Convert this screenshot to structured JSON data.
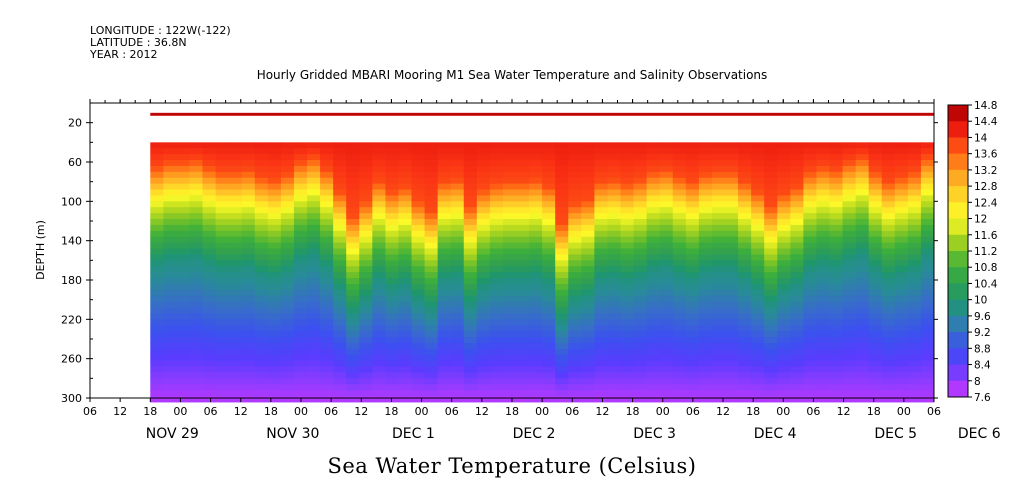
{
  "meta": {
    "longitude": "LONGITUDE : 122W(-122)",
    "latitude": "LATITUDE : 36.8N",
    "year": "YEAR : 2012"
  },
  "chart_data": {
    "type": "heatmap",
    "title": "Hourly Gridded MBARI Mooring M1 Sea Water Temperature and Salinity Observations",
    "xlabel": "Sea Water Temperature (Celsius)",
    "ylabel": "DEPTH (m)",
    "ylim": [
      300,
      0
    ],
    "y_ticks": [
      20,
      60,
      100,
      140,
      180,
      220,
      260,
      300
    ],
    "x_hour_ticks": [
      "06",
      "12",
      "18",
      "00",
      "06",
      "12",
      "18",
      "00",
      "06",
      "12",
      "18",
      "00",
      "06",
      "12",
      "18",
      "00",
      "06",
      "12",
      "18",
      "00",
      "06",
      "12",
      "18",
      "00",
      "06",
      "12",
      "18",
      "00",
      "06"
    ],
    "x_day_labels": [
      "NOV 29",
      "NOV 30",
      "DEC  1",
      "DEC  2",
      "DEC  3",
      "DEC  4",
      "DEC  5",
      "DEC  6"
    ],
    "colorbar": {
      "min": 7.6,
      "max": 14.8,
      "labels": [
        "14.8",
        "14.4",
        "14",
        "13.6",
        "13.2",
        "12.8",
        "12.4",
        "12",
        "11.6",
        "11.2",
        "10.8",
        "10.4",
        "10",
        "9.6",
        "9.2",
        "8.8",
        "8.4",
        "8",
        "7.6"
      ]
    },
    "data_start_hour": 12,
    "surface_band_depth": [
      10,
      13
    ],
    "surface_temperature": 14.6,
    "profile_top_depth": 40,
    "thermocline_depth_series": [
      105,
      100,
      100,
      98,
      105,
      110,
      110,
      108,
      115,
      118,
      112,
      100,
      95,
      108,
      130,
      155,
      140,
      120,
      130,
      125,
      140,
      150,
      120,
      118,
      145,
      128,
      122,
      120,
      120,
      118,
      125,
      162,
      142,
      138,
      120,
      118,
      122,
      118,
      110,
      108,
      115,
      120,
      112,
      110,
      110,
      120,
      130,
      145,
      132,
      125,
      110,
      105,
      108,
      100,
      95,
      110,
      120,
      115,
      110,
      95
    ]
  }
}
